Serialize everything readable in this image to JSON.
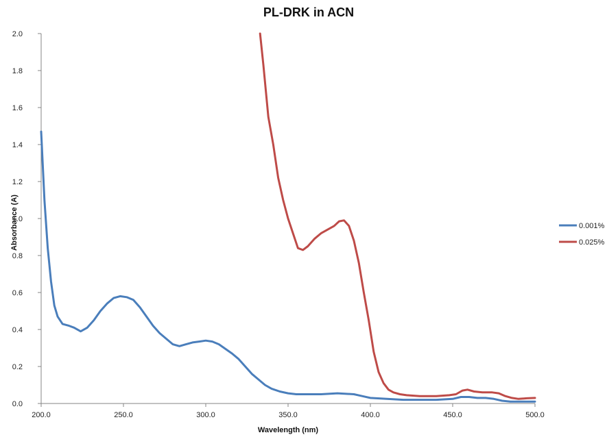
{
  "chart_data": {
    "type": "line",
    "title": "PL-DRK in ACN",
    "xlabel": "Wavelength (nm)",
    "ylabel": "Absorbance (A)",
    "xlim": [
      200,
      500
    ],
    "ylim": [
      0,
      2
    ],
    "x_ticks": [
      "200.0",
      "250.0",
      "300.0",
      "350.0",
      "400.0",
      "450.0",
      "500.0"
    ],
    "y_ticks": [
      "0.0",
      "0.2",
      "0.4",
      "0.6",
      "0.8",
      "1.0",
      "1.2",
      "1.4",
      "1.6",
      "1.8",
      "2.0"
    ],
    "grid": false,
    "legend_position": "right",
    "series": [
      {
        "name": "0.001%",
        "color": "#4a7ebb",
        "points": [
          [
            200,
            1.47
          ],
          [
            202,
            1.1
          ],
          [
            204,
            0.84
          ],
          [
            206,
            0.66
          ],
          [
            208,
            0.53
          ],
          [
            210,
            0.47
          ],
          [
            213,
            0.43
          ],
          [
            217,
            0.42
          ],
          [
            220,
            0.41
          ],
          [
            224,
            0.39
          ],
          [
            228,
            0.41
          ],
          [
            232,
            0.45
          ],
          [
            236,
            0.5
          ],
          [
            240,
            0.54
          ],
          [
            244,
            0.57
          ],
          [
            248,
            0.58
          ],
          [
            252,
            0.575
          ],
          [
            256,
            0.56
          ],
          [
            260,
            0.52
          ],
          [
            264,
            0.47
          ],
          [
            268,
            0.42
          ],
          [
            272,
            0.38
          ],
          [
            276,
            0.35
          ],
          [
            280,
            0.32
          ],
          [
            284,
            0.31
          ],
          [
            288,
            0.32
          ],
          [
            292,
            0.33
          ],
          [
            296,
            0.335
          ],
          [
            300,
            0.34
          ],
          [
            304,
            0.335
          ],
          [
            308,
            0.32
          ],
          [
            312,
            0.295
          ],
          [
            316,
            0.27
          ],
          [
            320,
            0.24
          ],
          [
            324,
            0.2
          ],
          [
            328,
            0.16
          ],
          [
            332,
            0.13
          ],
          [
            336,
            0.1
          ],
          [
            340,
            0.08
          ],
          [
            345,
            0.065
          ],
          [
            350,
            0.055
          ],
          [
            355,
            0.05
          ],
          [
            360,
            0.05
          ],
          [
            370,
            0.05
          ],
          [
            380,
            0.055
          ],
          [
            390,
            0.05
          ],
          [
            395,
            0.04
          ],
          [
            400,
            0.03
          ],
          [
            410,
            0.025
          ],
          [
            420,
            0.02
          ],
          [
            440,
            0.02
          ],
          [
            450,
            0.025
          ],
          [
            455,
            0.035
          ],
          [
            460,
            0.035
          ],
          [
            465,
            0.03
          ],
          [
            470,
            0.03
          ],
          [
            475,
            0.025
          ],
          [
            480,
            0.015
          ],
          [
            485,
            0.01
          ],
          [
            490,
            0.01
          ],
          [
            500,
            0.01
          ]
        ]
      },
      {
        "name": "0.025%",
        "color": "#be4b48",
        "points": [
          [
            333,
            2.0
          ],
          [
            335,
            1.83
          ],
          [
            338,
            1.55
          ],
          [
            341,
            1.4
          ],
          [
            344,
            1.22
          ],
          [
            347,
            1.1
          ],
          [
            350,
            1.0
          ],
          [
            353,
            0.92
          ],
          [
            356,
            0.84
          ],
          [
            359,
            0.83
          ],
          [
            362,
            0.85
          ],
          [
            366,
            0.89
          ],
          [
            370,
            0.92
          ],
          [
            374,
            0.94
          ],
          [
            378,
            0.96
          ],
          [
            381,
            0.985
          ],
          [
            384,
            0.99
          ],
          [
            387,
            0.96
          ],
          [
            390,
            0.88
          ],
          [
            393,
            0.76
          ],
          [
            396,
            0.6
          ],
          [
            399,
            0.45
          ],
          [
            402,
            0.28
          ],
          [
            405,
            0.17
          ],
          [
            408,
            0.11
          ],
          [
            411,
            0.075
          ],
          [
            414,
            0.06
          ],
          [
            418,
            0.05
          ],
          [
            422,
            0.045
          ],
          [
            430,
            0.04
          ],
          [
            440,
            0.04
          ],
          [
            448,
            0.045
          ],
          [
            452,
            0.05
          ],
          [
            456,
            0.07
          ],
          [
            459,
            0.075
          ],
          [
            463,
            0.065
          ],
          [
            468,
            0.06
          ],
          [
            474,
            0.06
          ],
          [
            478,
            0.055
          ],
          [
            482,
            0.04
          ],
          [
            486,
            0.03
          ],
          [
            490,
            0.025
          ],
          [
            495,
            0.028
          ],
          [
            500,
            0.03
          ]
        ]
      }
    ]
  }
}
